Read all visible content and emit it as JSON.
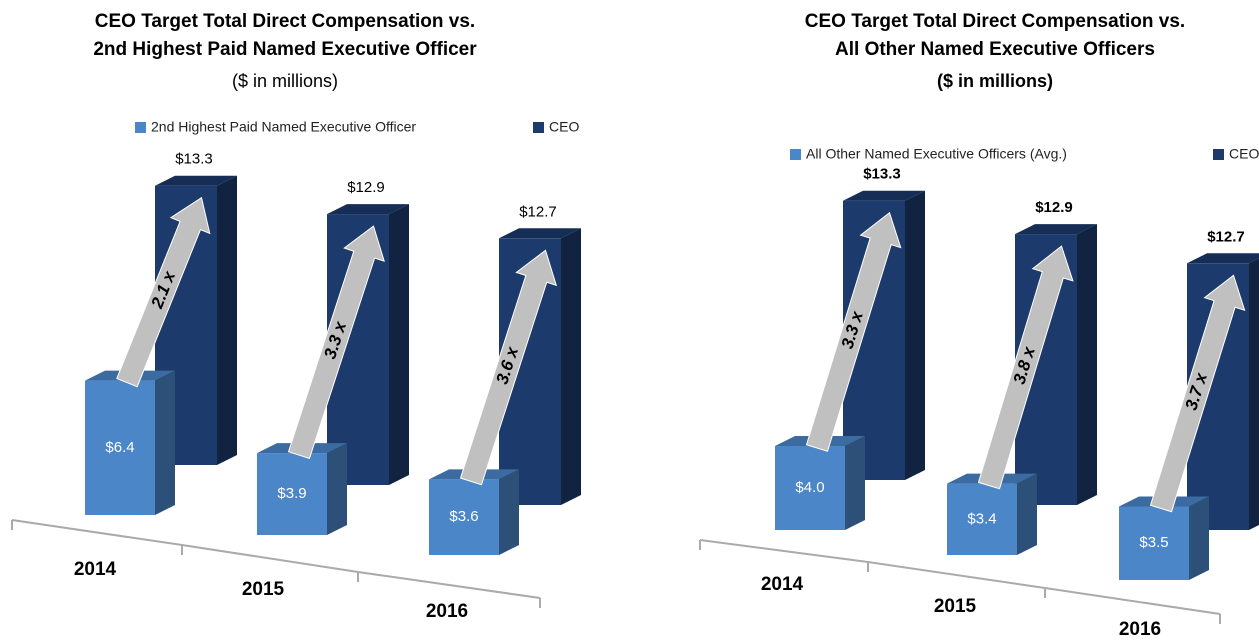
{
  "chart_data": [
    {
      "type": "bar3d",
      "title": [
        "CEO Target Total Direct Compensation vs.",
        "2nd Highest Paid Named Executive Officer"
      ],
      "subtitle": "($ in millions)",
      "categories": [
        "2014",
        "2015",
        "2016"
      ],
      "series": [
        {
          "name": "2nd Highest Paid Named Executive Officer",
          "color": "#4a86c8",
          "values": [
            6.4,
            3.9,
            3.6
          ],
          "value_labels": [
            "$6.4",
            "$3.9",
            "$3.6"
          ]
        },
        {
          "name": "CEO",
          "color": "#1c3a6b",
          "values": [
            13.3,
            12.9,
            12.7
          ],
          "value_labels": [
            "$13.3",
            "$12.9",
            "$12.7"
          ]
        }
      ],
      "annotations": [
        "2.1 x",
        "3.3 x",
        "3.6 x"
      ]
    },
    {
      "type": "bar3d",
      "title": [
        "CEO Target Total Direct Compensation vs.",
        "All Other Named Executive Officers"
      ],
      "subtitle": "($ in millions)",
      "categories": [
        "2014",
        "2015",
        "2016"
      ],
      "series": [
        {
          "name": "All Other Named Executive Officers (Avg.)",
          "color": "#4a86c8",
          "values": [
            4.0,
            3.4,
            3.5
          ],
          "value_labels": [
            "$4.0",
            "$3.4",
            "$3.5"
          ]
        },
        {
          "name": "CEO",
          "color": "#1c3a6b",
          "values": [
            13.3,
            12.9,
            12.7
          ],
          "value_labels": [
            "$13.3",
            "$12.9",
            "$12.7"
          ]
        }
      ],
      "annotations": [
        "3.3 x",
        "3.8 x",
        "3.7 x"
      ]
    }
  ]
}
